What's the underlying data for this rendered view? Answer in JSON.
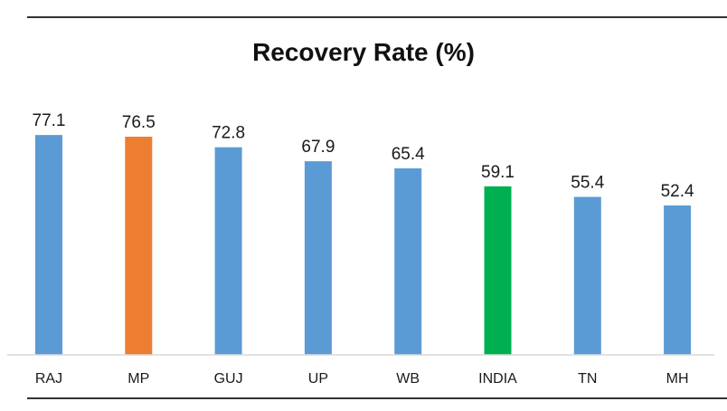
{
  "chart_data": {
    "type": "bar",
    "title": "Recovery Rate (%)",
    "xlabel": "",
    "ylabel": "",
    "categories": [
      "RAJ",
      "MP",
      "GUJ",
      "UP",
      "WB",
      "INDIA",
      "TN",
      "MH"
    ],
    "values": [
      77.1,
      76.5,
      72.8,
      67.9,
      65.4,
      59.1,
      55.4,
      52.4
    ],
    "bar_colors": [
      "#5b9bd5",
      "#ed7d31",
      "#5b9bd5",
      "#5b9bd5",
      "#5b9bd5",
      "#00b050",
      "#5b9bd5",
      "#5b9bd5"
    ],
    "ylim": [
      0,
      80
    ],
    "grid": false,
    "legend": "none"
  },
  "colors": {
    "default_bar": "#5b9bd5",
    "highlight_state": "#ed7d31",
    "national": "#00b050",
    "border_lines": "#333333"
  }
}
